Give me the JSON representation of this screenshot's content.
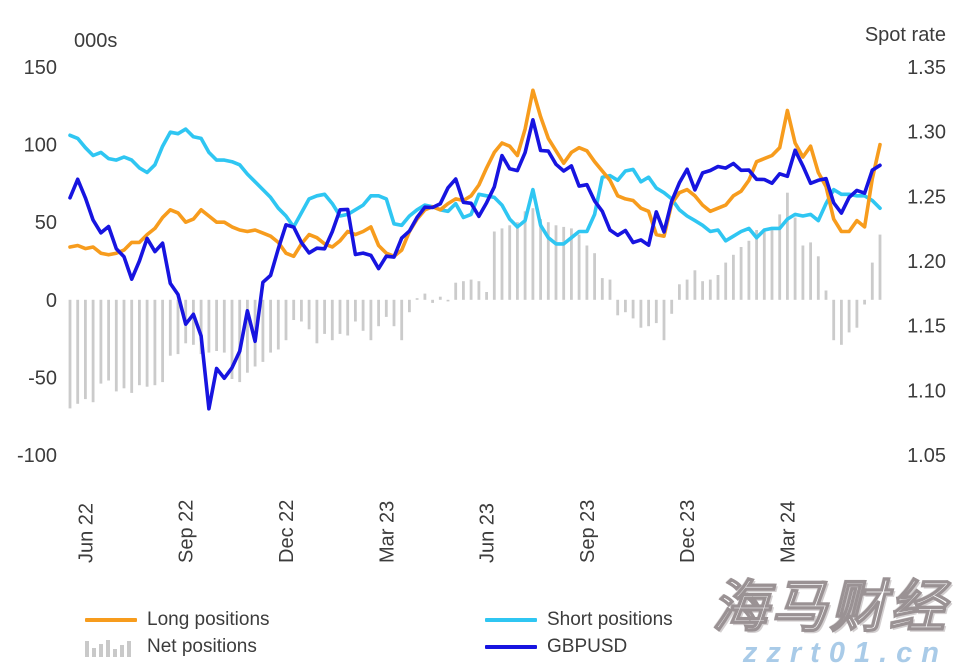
{
  "watermark": {
    "brand": "海马财经",
    "site": "zzrt01.cn"
  },
  "legend": {
    "items": [
      {
        "label": "Long positions",
        "series": "Long positions"
      },
      {
        "label": "Short positions",
        "series": "Short positions"
      },
      {
        "label": "Net positions",
        "series": "Net positions"
      },
      {
        "label": "GBPUSD",
        "series": "GBPUSD"
      }
    ]
  },
  "chart_data": {
    "type": "line+bar",
    "title": "",
    "left_axis": {
      "title": "000s",
      "ticks": [
        150,
        100,
        50,
        0,
        -50,
        -100
      ],
      "range": [
        -100,
        150
      ]
    },
    "right_axis": {
      "title": "Spot rate",
      "ticks": [
        1.35,
        1.3,
        1.25,
        1.2,
        1.15,
        1.1,
        1.05
      ],
      "range": [
        1.05,
        1.35
      ]
    },
    "x_axis": {
      "tick_labels": [
        "Jun 22",
        "Sep 22",
        "Dec 22",
        "Mar 23",
        "Jun 23",
        "Sep 23",
        "Dec 23",
        "Mar 24"
      ],
      "tick_indices": [
        2,
        15,
        28,
        41,
        54,
        67,
        80,
        93
      ],
      "points": 106,
      "span": "weekly, May 2022 - May 2024"
    },
    "grid": false,
    "legend_position": "bottom",
    "series": [
      {
        "name": "Net positions",
        "type": "bar",
        "axis": "left",
        "color": "#cbcbcb",
        "values": [
          -70,
          -67,
          -64,
          -66,
          -54,
          -52,
          -59,
          -57,
          -60,
          -55,
          -56,
          -55,
          -53,
          -36,
          -35,
          -28,
          -29,
          -35,
          -34,
          -33,
          -34,
          -51,
          -53,
          -47,
          -43,
          -40,
          -34,
          -32,
          -26,
          -13,
          -14,
          -19,
          -28,
          -22,
          -26,
          -22,
          -23,
          -14,
          -20,
          -26,
          -17,
          -11,
          -17,
          -26,
          -8,
          1,
          4,
          -2,
          2,
          -1,
          11,
          12,
          13,
          12,
          5,
          44,
          46,
          48,
          50,
          57,
          59,
          52,
          50,
          48,
          47,
          46,
          42,
          35,
          30,
          14,
          13,
          -10,
          -8,
          -12,
          -18,
          -17,
          -15,
          -26,
          -9,
          10,
          13,
          19,
          12,
          13,
          16,
          24,
          29,
          34,
          38,
          45,
          45,
          46,
          55,
          69,
          53,
          35,
          37,
          28,
          6,
          -26,
          -29,
          -21,
          -18,
          -3,
          24,
          42
        ]
      },
      {
        "name": "Short positions",
        "type": "line",
        "axis": "left",
        "color": "#2fc6f2",
        "values": [
          106,
          104,
          98,
          93,
          95,
          91,
          90,
          92,
          90,
          85,
          82,
          87,
          99,
          108,
          107,
          110,
          105,
          104,
          95,
          90,
          90,
          89,
          87,
          81,
          76,
          71,
          66,
          59,
          54,
          47,
          56,
          65,
          67,
          68,
          62,
          54,
          55,
          58,
          61,
          67,
          67,
          65,
          49,
          48,
          54,
          58,
          61,
          60,
          58,
          57,
          62,
          53,
          55,
          68,
          67,
          66,
          61,
          52,
          47,
          51,
          71,
          48,
          40,
          36,
          36,
          40,
          44,
          44,
          55,
          79,
          80,
          77,
          83,
          84,
          76,
          79,
          72,
          69,
          65,
          58,
          54,
          51,
          48,
          44,
          45,
          38,
          41,
          44,
          46,
          40,
          45,
          46,
          46,
          52,
          55,
          54,
          55,
          51,
          62,
          71,
          68,
          68,
          67,
          67,
          64,
          59
        ]
      },
      {
        "name": "Long positions",
        "type": "line",
        "axis": "left",
        "color": "#f79c1d",
        "values": [
          34,
          35,
          33,
          34,
          30,
          29,
          30,
          32,
          37,
          37,
          42,
          46,
          53,
          58,
          56,
          50,
          52,
          58,
          54,
          50,
          50,
          47,
          45,
          44,
          45,
          43,
          41,
          37,
          30,
          28,
          36,
          42,
          40,
          36,
          34,
          38,
          44,
          42,
          44,
          47,
          35,
          30,
          28,
          32,
          44,
          52,
          58,
          60,
          58,
          62,
          65,
          64,
          67,
          74,
          85,
          95,
          101,
          99,
          93,
          110,
          135,
          118,
          104,
          96,
          88,
          95,
          98,
          96,
          89,
          83,
          77,
          67,
          65,
          64,
          59,
          57,
          42,
          41,
          62,
          69,
          71,
          67,
          61,
          57,
          59,
          61,
          67,
          70,
          77,
          89,
          91,
          93,
          98,
          122,
          101,
          92,
          99,
          82,
          73,
          52,
          44,
          44,
          51,
          47,
          78,
          100
        ]
      },
      {
        "name": "GBPUSD",
        "type": "line",
        "axis": "right",
        "color": "#1714e0",
        "values": [
          1.2489,
          1.2632,
          1.2488,
          1.2316,
          1.2218,
          1.2267,
          1.2095,
          1.2033,
          1.1859,
          1.2,
          1.2175,
          1.2073,
          1.2138,
          1.1827,
          1.1741,
          1.1511,
          1.1588,
          1.1421,
          1.0857,
          1.1169,
          1.1094,
          1.1174,
          1.1302,
          1.1615,
          1.1379,
          1.1835,
          1.1889,
          1.2095,
          1.228,
          1.2262,
          1.2142,
          1.2063,
          1.2099,
          1.2094,
          1.2227,
          1.2396,
          1.2399,
          1.205,
          1.2061,
          1.2043,
          1.1941,
          1.2037,
          1.203,
          1.2177,
          1.2231,
          1.2337,
          1.2416,
          1.2414,
          1.2443,
          1.2566,
          1.2634,
          1.2454,
          1.2446,
          1.2346,
          1.2451,
          1.2573,
          1.2815,
          1.2713,
          1.2699,
          1.2838,
          1.3092,
          1.2854,
          1.285,
          1.2748,
          1.2696,
          1.2735,
          1.2579,
          1.259,
          1.2465,
          1.2384,
          1.224,
          1.2199,
          1.2236,
          1.2143,
          1.2163,
          1.2122,
          1.238,
          1.2225,
          1.2462,
          1.2605,
          1.271,
          1.255,
          1.2681,
          1.27,
          1.2731,
          1.2718,
          1.2754,
          1.2701,
          1.2703,
          1.2632,
          1.263,
          1.2601,
          1.2674,
          1.2655,
          1.2857,
          1.2735,
          1.2601,
          1.2624,
          1.2637,
          1.245,
          1.237,
          1.2492,
          1.2546,
          1.2524,
          1.2702,
          1.274
        ]
      }
    ]
  }
}
